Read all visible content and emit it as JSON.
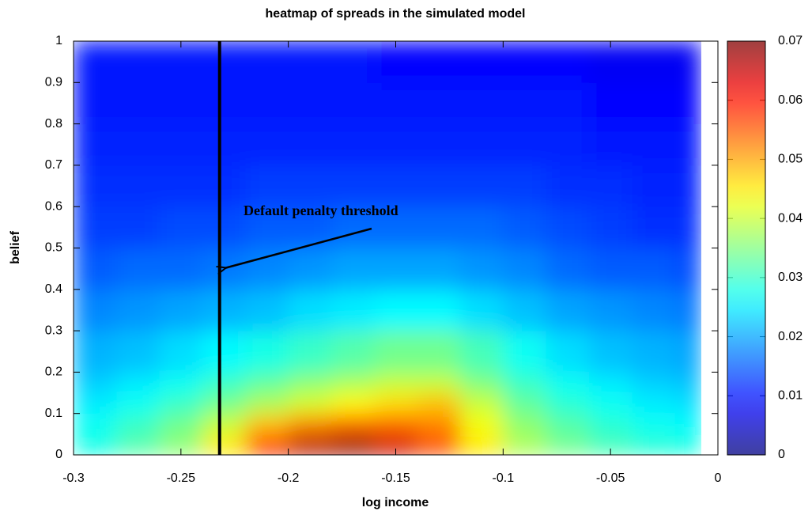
{
  "chart_data": {
    "type": "heatmap",
    "title": "heatmap of spreads in the simulated model",
    "xlabel": "log income",
    "ylabel": "belief",
    "xlim": [
      -0.3,
      0
    ],
    "ylim": [
      0,
      1
    ],
    "xticks": [
      -0.3,
      -0.25,
      -0.2,
      -0.15,
      -0.1,
      -0.05,
      0
    ],
    "yticks": [
      0,
      0.1,
      0.2,
      0.3,
      0.4,
      0.5,
      0.6,
      0.7,
      0.8,
      0.9,
      1
    ],
    "colormap": "jet",
    "clim": [
      0,
      0.07
    ],
    "cticks": [
      0,
      0.01,
      0.02,
      0.03,
      0.04,
      0.05,
      0.06,
      0.07
    ],
    "xbins": [
      -0.3,
      -0.28,
      -0.26,
      -0.24,
      -0.22,
      -0.2,
      -0.18,
      -0.16,
      -0.14,
      -0.12,
      -0.1,
      -0.08,
      -0.06,
      -0.04,
      -0.02,
      -0.008
    ],
    "ybins": [
      0,
      0.05,
      0.1,
      0.15,
      0.2,
      0.3,
      0.4,
      0.5,
      0.6,
      0.7,
      0.8,
      0.9,
      1
    ],
    "z": [
      [
        0.028,
        0.032,
        0.036,
        0.045,
        0.058,
        0.066,
        0.068,
        0.064,
        0.056,
        0.045,
        0.038,
        0.034,
        0.031,
        0.029,
        0.028
      ],
      [
        0.027,
        0.03,
        0.034,
        0.04,
        0.048,
        0.052,
        0.054,
        0.054,
        0.052,
        0.043,
        0.036,
        0.032,
        0.029,
        0.027,
        0.026
      ],
      [
        0.025,
        0.027,
        0.03,
        0.034,
        0.038,
        0.041,
        0.044,
        0.046,
        0.048,
        0.04,
        0.033,
        0.029,
        0.027,
        0.025,
        0.024
      ],
      [
        0.023,
        0.025,
        0.027,
        0.03,
        0.033,
        0.036,
        0.038,
        0.04,
        0.04,
        0.035,
        0.03,
        0.027,
        0.025,
        0.023,
        0.022
      ],
      [
        0.021,
        0.022,
        0.024,
        0.026,
        0.028,
        0.03,
        0.032,
        0.034,
        0.034,
        0.031,
        0.027,
        0.024,
        0.022,
        0.021,
        0.02
      ],
      [
        0.018,
        0.019,
        0.02,
        0.021,
        0.022,
        0.024,
        0.025,
        0.026,
        0.026,
        0.024,
        0.022,
        0.02,
        0.019,
        0.018,
        0.017
      ],
      [
        0.015,
        0.016,
        0.016,
        0.017,
        0.018,
        0.019,
        0.02,
        0.02,
        0.02,
        0.019,
        0.018,
        0.016,
        0.015,
        0.015,
        0.014
      ],
      [
        0.013,
        0.013,
        0.014,
        0.014,
        0.015,
        0.015,
        0.016,
        0.016,
        0.016,
        0.016,
        0.015,
        0.014,
        0.013,
        0.012,
        0.012
      ],
      [
        0.012,
        0.012,
        0.012,
        0.012,
        0.013,
        0.013,
        0.013,
        0.013,
        0.013,
        0.013,
        0.013,
        0.012,
        0.012,
        0.011,
        0.011
      ],
      [
        0.011,
        0.011,
        0.011,
        0.011,
        0.011,
        0.011,
        0.011,
        0.011,
        0.011,
        0.011,
        0.011,
        0.011,
        0.01,
        0.01,
        0.01
      ],
      [
        0.01,
        0.01,
        0.01,
        0.01,
        0.01,
        0.01,
        0.01,
        0.01,
        0.01,
        0.01,
        0.01,
        0.01,
        0.009,
        0.009,
        0.009
      ],
      [
        0.01,
        0.01,
        0.01,
        0.01,
        0.01,
        0.01,
        0.01,
        0.009,
        0.009,
        0.009,
        0.009,
        0.009,
        0.008,
        0.008,
        0.008
      ]
    ],
    "threshold": -0.232,
    "annotation": "Default penalty threshold"
  }
}
